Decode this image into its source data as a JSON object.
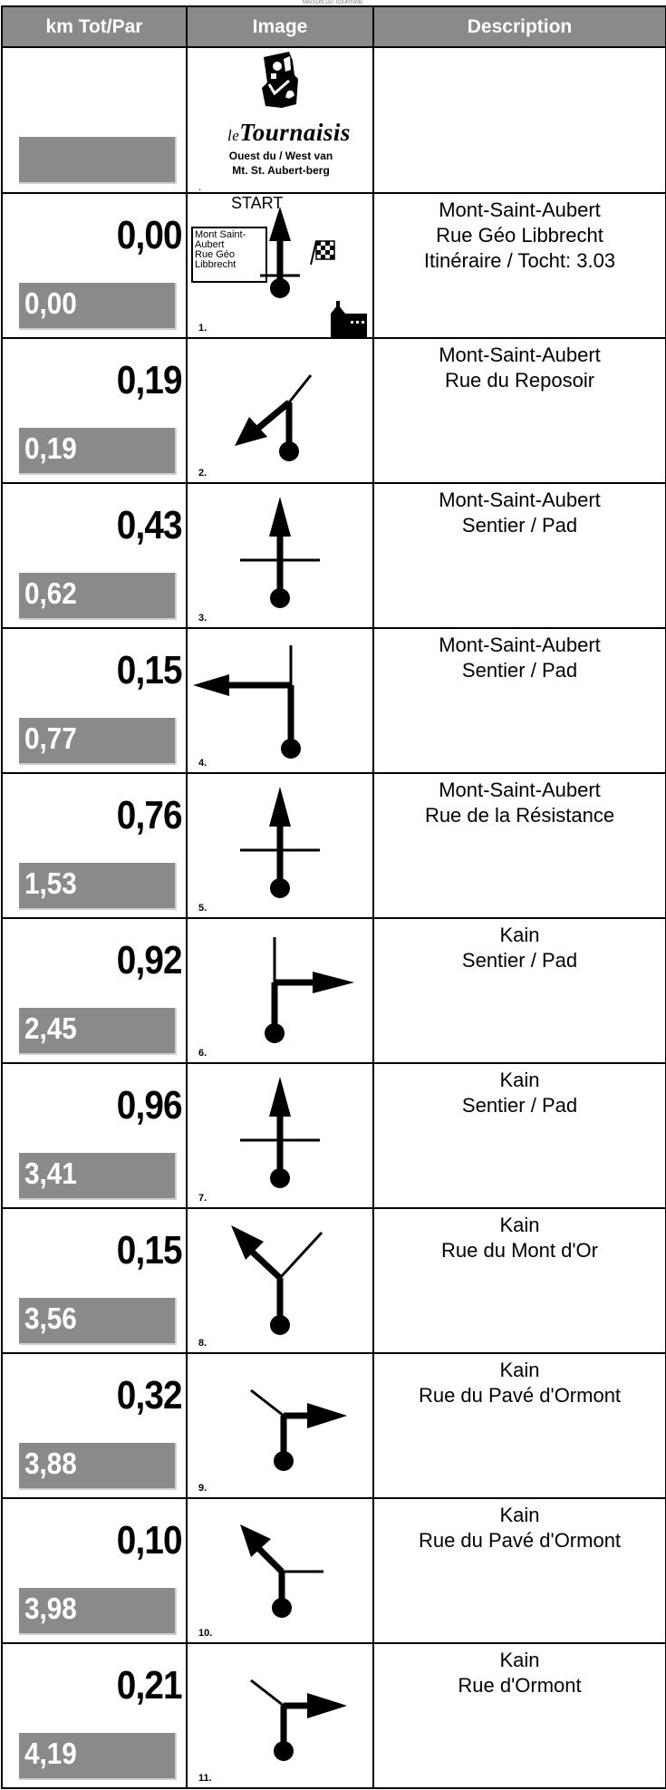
{
  "header_caption": "MAISON DU TOURISME",
  "columns": {
    "km": "km Tot/Par",
    "image": "Image",
    "desc": "Description"
  },
  "logo": {
    "brand_prefix": "le",
    "brand": "Tournaisis",
    "line1": "Ouest du / West van",
    "line2": "Mt. St. Aubert-berg",
    "step": "."
  },
  "steps": [
    {
      "partial": "0,00",
      "total": "0,00",
      "step": "1.",
      "icon": "start-straight-icon",
      "lines": [
        "Mont-Saint-Aubert",
        "Rue Géo Libbrecht",
        "Itinéraire / Tocht: 3.03"
      ],
      "start_label": "START",
      "sign": [
        "Mont Saint-",
        "Aubert",
        "Rue Géo",
        "Libbrecht"
      ]
    },
    {
      "partial": "0,19",
      "total": "0,19",
      "step": "2.",
      "icon": "sharp-left-icon",
      "lines": [
        "Mont-Saint-Aubert",
        "Rue du Reposoir"
      ]
    },
    {
      "partial": "0,43",
      "total": "0,62",
      "step": "3.",
      "icon": "straight-crossing-icon",
      "lines": [
        "Mont-Saint-Aubert",
        "Sentier / Pad"
      ]
    },
    {
      "partial": "0,15",
      "total": "0,77",
      "step": "4.",
      "icon": "turn-left-icon",
      "lines": [
        "Mont-Saint-Aubert",
        "Sentier / Pad"
      ]
    },
    {
      "partial": "0,76",
      "total": "1,53",
      "step": "5.",
      "icon": "straight-crossing-icon",
      "lines": [
        "Mont-Saint-Aubert",
        "Rue de la Résistance"
      ]
    },
    {
      "partial": "0,92",
      "total": "2,45",
      "step": "6.",
      "icon": "turn-right-icon",
      "lines": [
        "Kain",
        "Sentier / Pad"
      ]
    },
    {
      "partial": "0,96",
      "total": "3,41",
      "step": "7.",
      "icon": "straight-crossing-icon",
      "lines": [
        "Kain",
        "Sentier / Pad"
      ]
    },
    {
      "partial": "0,15",
      "total": "3,56",
      "step": "8.",
      "icon": "fork-left-icon",
      "lines": [
        "Kain",
        "Rue du Mont d'Or"
      ]
    },
    {
      "partial": "0,32",
      "total": "3,88",
      "step": "9.",
      "icon": "right-small-icon",
      "lines": [
        "Kain",
        "Rue du Pavé d'Ormont"
      ]
    },
    {
      "partial": "0,10",
      "total": "3,98",
      "step": "10.",
      "icon": "left-diagonal-icon",
      "lines": [
        "Kain",
        "Rue du Pavé d'Ormont"
      ]
    },
    {
      "partial": "0,21",
      "total": "4,19",
      "step": "11.",
      "icon": "right-small-icon",
      "lines": [
        "Kain",
        "Rue d'Ormont"
      ]
    }
  ]
}
